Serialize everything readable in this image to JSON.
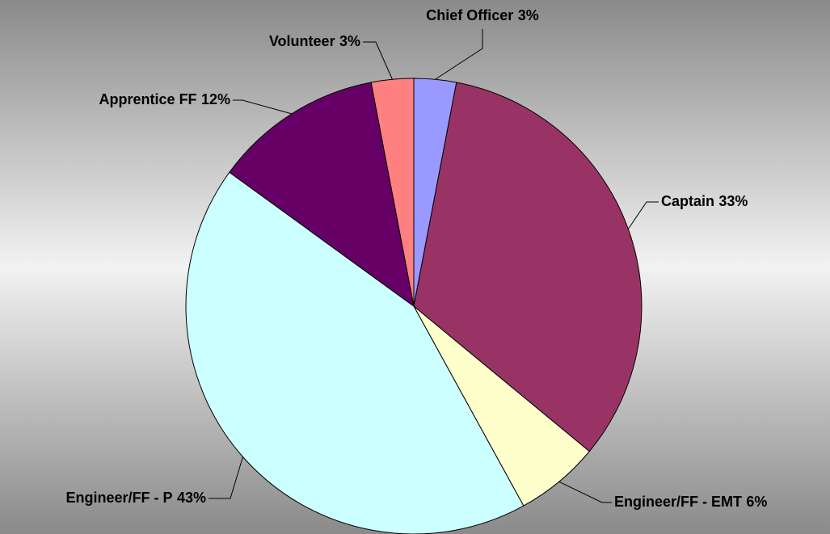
{
  "chart_data": {
    "type": "pie",
    "categories": [
      "Chief Officer",
      "Captain",
      "Engineer/FF - EMT",
      "Engineer/FF - P",
      "Apprentice FF",
      "Volunteer"
    ],
    "values": [
      3,
      33,
      6,
      43,
      12,
      3
    ],
    "value_labels": [
      "3%",
      "33%",
      "6%",
      "43%",
      "12%",
      "3%"
    ],
    "colors": [
      "#9999ff",
      "#993366",
      "#ffffcc",
      "#ccffff",
      "#660066",
      "#ff8080"
    ]
  }
}
